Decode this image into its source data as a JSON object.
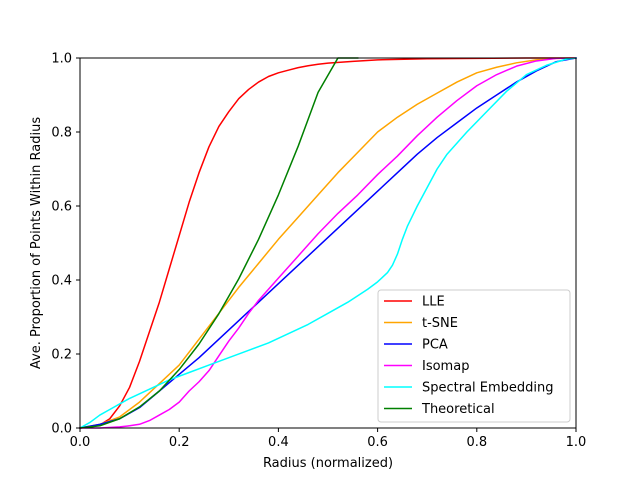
{
  "chart_data": {
    "type": "line",
    "title": "",
    "xlabel": "Radius (normalized)",
    "ylabel": "Ave. Proportion of Points Within Radius",
    "xlim": [
      0.0,
      1.0
    ],
    "ylim": [
      0.0,
      1.0
    ],
    "xticks": [
      0.0,
      0.2,
      0.4,
      0.6,
      0.8,
      1.0
    ],
    "yticks": [
      0.0,
      0.2,
      0.4,
      0.6,
      0.8,
      1.0
    ],
    "xtick_labels": [
      "0.0",
      "0.2",
      "0.4",
      "0.6",
      "0.8",
      "1.0"
    ],
    "ytick_labels": [
      "0.0",
      "0.2",
      "0.4",
      "0.6",
      "0.8",
      "1.0"
    ],
    "grid": false,
    "legend_position": "lower-right",
    "series": [
      {
        "name": "LLE",
        "color": "#ff0000",
        "x": [
          0.0,
          0.02,
          0.04,
          0.06,
          0.08,
          0.1,
          0.12,
          0.14,
          0.16,
          0.18,
          0.2,
          0.22,
          0.24,
          0.26,
          0.28,
          0.3,
          0.32,
          0.34,
          0.36,
          0.38,
          0.4,
          0.42,
          0.44,
          0.46,
          0.48,
          0.5,
          0.55,
          0.6,
          0.7,
          0.8,
          0.9,
          1.0
        ],
        "y": [
          0.0,
          0.002,
          0.008,
          0.025,
          0.06,
          0.11,
          0.18,
          0.26,
          0.34,
          0.43,
          0.52,
          0.61,
          0.69,
          0.76,
          0.815,
          0.855,
          0.89,
          0.915,
          0.935,
          0.95,
          0.96,
          0.967,
          0.974,
          0.979,
          0.983,
          0.986,
          0.991,
          0.995,
          0.998,
          0.999,
          1.0,
          1.0
        ]
      },
      {
        "name": "t-SNE",
        "color": "#ffa500",
        "x": [
          0.0,
          0.04,
          0.08,
          0.12,
          0.16,
          0.2,
          0.24,
          0.28,
          0.32,
          0.36,
          0.4,
          0.44,
          0.48,
          0.52,
          0.56,
          0.6,
          0.64,
          0.68,
          0.72,
          0.76,
          0.8,
          0.84,
          0.88,
          0.92,
          0.96,
          1.0
        ],
        "y": [
          0.0,
          0.01,
          0.03,
          0.07,
          0.12,
          0.17,
          0.24,
          0.31,
          0.38,
          0.445,
          0.51,
          0.57,
          0.63,
          0.69,
          0.745,
          0.8,
          0.84,
          0.875,
          0.905,
          0.935,
          0.96,
          0.975,
          0.987,
          0.995,
          0.999,
          1.0
        ]
      },
      {
        "name": "PCA",
        "color": "#0000ff",
        "x": [
          0.0,
          0.04,
          0.08,
          0.12,
          0.16,
          0.2,
          0.24,
          0.28,
          0.32,
          0.36,
          0.4,
          0.44,
          0.48,
          0.52,
          0.56,
          0.6,
          0.64,
          0.68,
          0.72,
          0.76,
          0.8,
          0.84,
          0.88,
          0.92,
          0.96,
          1.0
        ],
        "y": [
          0.0,
          0.01,
          0.025,
          0.055,
          0.1,
          0.145,
          0.19,
          0.24,
          0.29,
          0.34,
          0.39,
          0.44,
          0.49,
          0.54,
          0.59,
          0.64,
          0.69,
          0.74,
          0.785,
          0.825,
          0.865,
          0.9,
          0.935,
          0.965,
          0.99,
          1.0
        ]
      },
      {
        "name": "Isomap",
        "color": "#ff00ff",
        "x": [
          0.0,
          0.04,
          0.08,
          0.1,
          0.12,
          0.14,
          0.16,
          0.18,
          0.2,
          0.22,
          0.24,
          0.26,
          0.28,
          0.3,
          0.32,
          0.34,
          0.36,
          0.38,
          0.4,
          0.44,
          0.48,
          0.52,
          0.56,
          0.6,
          0.64,
          0.68,
          0.72,
          0.76,
          0.8,
          0.84,
          0.88,
          0.92,
          0.96,
          1.0
        ],
        "y": [
          0.0,
          0.0,
          0.003,
          0.006,
          0.01,
          0.02,
          0.035,
          0.05,
          0.07,
          0.1,
          0.125,
          0.155,
          0.195,
          0.235,
          0.27,
          0.31,
          0.345,
          0.375,
          0.405,
          0.465,
          0.525,
          0.58,
          0.63,
          0.685,
          0.735,
          0.79,
          0.84,
          0.885,
          0.925,
          0.955,
          0.978,
          0.992,
          0.999,
          1.0
        ]
      },
      {
        "name": "Spectral Embedding",
        "color": "#00ffff",
        "x": [
          0.0,
          0.02,
          0.04,
          0.06,
          0.08,
          0.1,
          0.14,
          0.18,
          0.22,
          0.26,
          0.3,
          0.34,
          0.38,
          0.42,
          0.46,
          0.5,
          0.54,
          0.58,
          0.6,
          0.62,
          0.63,
          0.64,
          0.65,
          0.66,
          0.68,
          0.7,
          0.72,
          0.74,
          0.78,
          0.82,
          0.86,
          0.9,
          0.94,
          0.98,
          1.0
        ],
        "y": [
          0.0,
          0.015,
          0.035,
          0.05,
          0.065,
          0.08,
          0.105,
          0.13,
          0.15,
          0.17,
          0.19,
          0.21,
          0.23,
          0.255,
          0.28,
          0.31,
          0.34,
          0.375,
          0.395,
          0.42,
          0.44,
          0.47,
          0.51,
          0.545,
          0.6,
          0.65,
          0.7,
          0.74,
          0.8,
          0.855,
          0.91,
          0.955,
          0.98,
          0.997,
          1.0
        ]
      },
      {
        "name": "Theoretical",
        "color": "#008000",
        "x": [
          0.0,
          0.04,
          0.08,
          0.12,
          0.16,
          0.2,
          0.24,
          0.28,
          0.32,
          0.36,
          0.4,
          0.44,
          0.48,
          0.52,
          0.56
        ],
        "y": [
          0.0,
          0.006,
          0.025,
          0.057,
          0.1,
          0.158,
          0.227,
          0.309,
          0.403,
          0.51,
          0.63,
          0.762,
          0.907,
          1.0,
          1.0
        ]
      }
    ]
  }
}
